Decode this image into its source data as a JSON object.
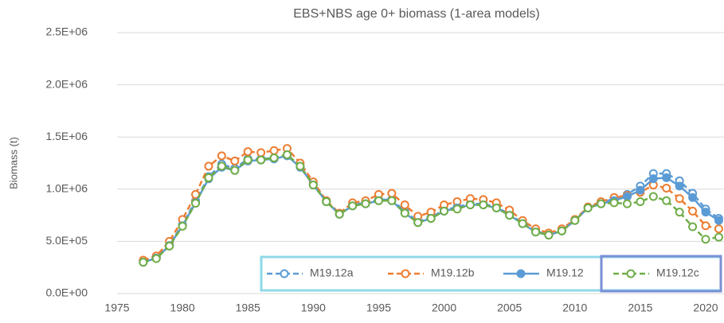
{
  "chart_data": {
    "type": "line",
    "title": "EBS+NBS age 0+ biomass (1-area models)",
    "y_label": "Biomass (t)",
    "x": [
      1977,
      1978,
      1979,
      1980,
      1981,
      1982,
      1983,
      1984,
      1985,
      1986,
      1987,
      1988,
      1989,
      1990,
      1991,
      1992,
      1993,
      1994,
      1995,
      1996,
      1997,
      1998,
      1999,
      2000,
      2001,
      2002,
      2003,
      2004,
      2005,
      2006,
      2007,
      2008,
      2009,
      2010,
      2011,
      2012,
      2013,
      2014,
      2015,
      2016,
      2017,
      2018,
      2019,
      2020,
      2021
    ],
    "series": [
      {
        "name": "M19.12a",
        "color": "#5b9bd5",
        "dashed": true,
        "filled": false,
        "values": [
          305000,
          345000,
          470000,
          660000,
          890000,
          1120000,
          1240000,
          1200000,
          1290000,
          1290000,
          1300000,
          1330000,
          1220000,
          1050000,
          880000,
          760000,
          850000,
          870000,
          900000,
          900000,
          790000,
          690000,
          730000,
          800000,
          830000,
          860000,
          860000,
          830000,
          760000,
          680000,
          600000,
          560000,
          600000,
          700000,
          820000,
          870000,
          910000,
          950000,
          1030000,
          1150000,
          1150000,
          1080000,
          960000,
          810000,
          720000
        ]
      },
      {
        "name": "M19.12b",
        "color": "#ed7d31",
        "dashed": true,
        "filled": false,
        "values": [
          320000,
          360000,
          500000,
          710000,
          950000,
          1220000,
          1320000,
          1270000,
          1360000,
          1350000,
          1370000,
          1390000,
          1250000,
          1070000,
          890000,
          770000,
          870000,
          890000,
          950000,
          960000,
          850000,
          740000,
          780000,
          850000,
          880000,
          910000,
          900000,
          870000,
          800000,
          700000,
          620000,
          580000,
          620000,
          710000,
          830000,
          880000,
          920000,
          940000,
          970000,
          1040000,
          1010000,
          910000,
          790000,
          650000,
          620000
        ]
      },
      {
        "name": "M19.12",
        "color": "#5b9bd5",
        "dashed": false,
        "filled": true,
        "values": [
          300000,
          340000,
          460000,
          650000,
          870000,
          1100000,
          1210000,
          1180000,
          1270000,
          1280000,
          1290000,
          1320000,
          1210000,
          1040000,
          880000,
          760000,
          840000,
          860000,
          890000,
          890000,
          770000,
          680000,
          720000,
          790000,
          820000,
          850000,
          850000,
          820000,
          750000,
          670000,
          590000,
          560000,
          600000,
          700000,
          820000,
          860000,
          890000,
          930000,
          990000,
          1100000,
          1110000,
          1030000,
          920000,
          780000,
          700000
        ]
      },
      {
        "name": "M19.12c",
        "color": "#70ad47",
        "dashed": true,
        "filled": false,
        "values": [
          300000,
          335000,
          455000,
          645000,
          865000,
          1110000,
          1220000,
          1180000,
          1280000,
          1280000,
          1300000,
          1330000,
          1220000,
          1040000,
          880000,
          760000,
          840000,
          860000,
          890000,
          890000,
          770000,
          680000,
          720000,
          790000,
          810000,
          850000,
          850000,
          820000,
          750000,
          670000,
          590000,
          560000,
          600000,
          700000,
          820000,
          860000,
          870000,
          860000,
          880000,
          930000,
          890000,
          780000,
          640000,
          520000,
          540000
        ]
      }
    ],
    "xlim": [
      1975,
      2021.4
    ],
    "xticks": [
      1975,
      1980,
      1985,
      1990,
      1995,
      2000,
      2005,
      2010,
      2015,
      2020
    ],
    "ylim": [
      0,
      2500000
    ],
    "yticks": [
      {
        "value": 0,
        "label": "0.0E+00"
      },
      {
        "value": 500000,
        "label": "5.0E+05"
      },
      {
        "value": 1000000,
        "label": "1.0E+06"
      },
      {
        "value": 1500000,
        "label": "1.5E+06"
      },
      {
        "value": 2000000,
        "label": "2.0E+06"
      },
      {
        "value": 2500000,
        "label": "2.5E+06"
      }
    ],
    "grid": true,
    "legend": "bottom"
  }
}
